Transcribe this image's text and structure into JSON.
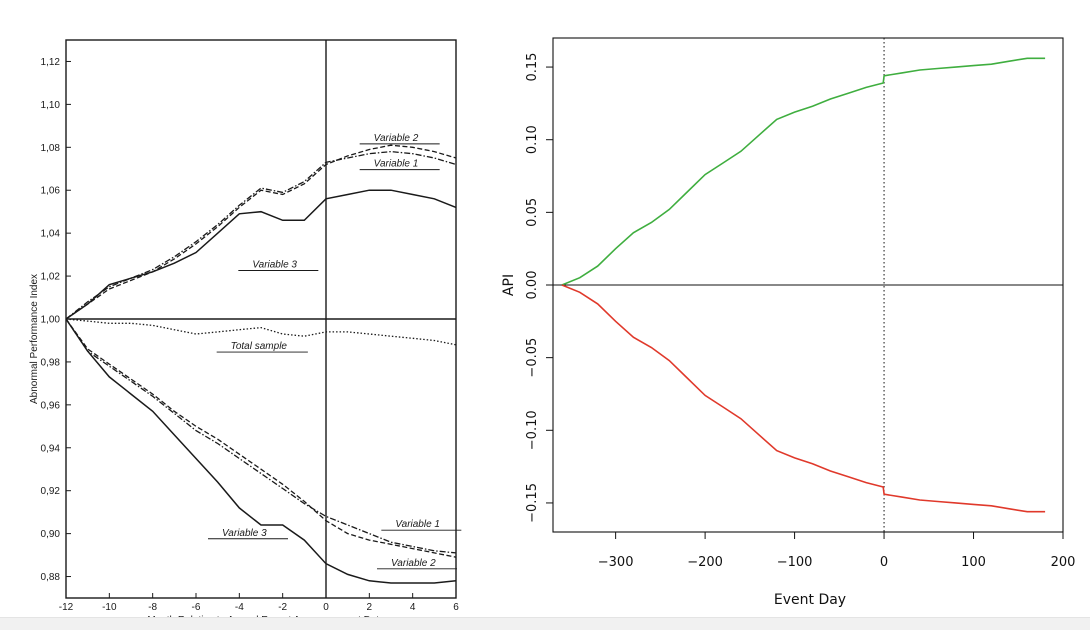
{
  "chart_data": [
    {
      "type": "line",
      "xlabel": "Month Relative to Annual Report Announcement Date",
      "ylabel": "Abnormal Performance Index",
      "xlim": [
        -12,
        6
      ],
      "ylim": [
        0.87,
        1.13
      ],
      "x_ticks": [
        "-12",
        "-10",
        "-8",
        "-6",
        "-4",
        "-2",
        "0",
        "2",
        "4",
        "6"
      ],
      "y_ticks": [
        "0,88",
        "0,90",
        "0,92",
        "0,94",
        "0,96",
        "0,98",
        "1,00",
        "1,02",
        "1,04",
        "1,06",
        "1,08",
        "1,10",
        "1,12"
      ],
      "vertical_line_x": 0,
      "reference_line_y": 1.0,
      "x": [
        -12,
        -11,
        -10,
        -9,
        -8,
        -7,
        -6,
        -5,
        -4,
        -3,
        -2,
        -1,
        0,
        1,
        2,
        3,
        4,
        5,
        6
      ],
      "series": [
        {
          "name": "Variable 2",
          "style": "dashed",
          "values": [
            1.0,
            1.007,
            1.014,
            1.018,
            1.022,
            1.028,
            1.035,
            1.043,
            1.052,
            1.06,
            1.058,
            1.063,
            1.072,
            1.076,
            1.079,
            1.081,
            1.08,
            1.078,
            1.075
          ]
        },
        {
          "name": "Variable 1",
          "style": "dashdot",
          "values": [
            1.0,
            1.008,
            1.015,
            1.019,
            1.023,
            1.029,
            1.036,
            1.044,
            1.053,
            1.061,
            1.059,
            1.064,
            1.073,
            1.075,
            1.077,
            1.078,
            1.077,
            1.075,
            1.072
          ]
        },
        {
          "name": "Variable 3",
          "style": "solid",
          "values": [
            1.0,
            1.007,
            1.016,
            1.019,
            1.022,
            1.026,
            1.031,
            1.04,
            1.049,
            1.05,
            1.046,
            1.046,
            1.056,
            1.058,
            1.06,
            1.06,
            1.058,
            1.056,
            1.052
          ]
        },
        {
          "name": "Total sample",
          "style": "dotted",
          "values": [
            1.0,
            0.999,
            0.998,
            0.998,
            0.997,
            0.995,
            0.993,
            0.994,
            0.995,
            0.996,
            0.993,
            0.992,
            0.994,
            0.994,
            0.993,
            0.992,
            0.991,
            0.99,
            0.988
          ]
        },
        {
          "name": "Variable 1",
          "style": "dashdot",
          "values": [
            1.0,
            0.985,
            0.978,
            0.971,
            0.964,
            0.956,
            0.948,
            0.942,
            0.935,
            0.928,
            0.921,
            0.914,
            0.908,
            0.904,
            0.9,
            0.896,
            0.894,
            0.892,
            0.891
          ]
        },
        {
          "name": "Variable 2",
          "style": "dashed",
          "values": [
            1.0,
            0.986,
            0.979,
            0.972,
            0.965,
            0.957,
            0.95,
            0.944,
            0.937,
            0.93,
            0.923,
            0.915,
            0.906,
            0.9,
            0.897,
            0.895,
            0.893,
            0.891,
            0.889
          ]
        },
        {
          "name": "Variable 3",
          "style": "solid",
          "values": [
            1.0,
            0.985,
            0.973,
            0.965,
            0.957,
            0.946,
            0.935,
            0.924,
            0.912,
            0.904,
            0.904,
            0.897,
            0.886,
            0.881,
            0.878,
            0.877,
            0.877,
            0.877,
            0.878
          ]
        }
      ],
      "labels": [
        {
          "text": "Variable 2",
          "x": 2.2,
          "y": 1.083
        },
        {
          "text": "Variable 1",
          "x": 2.2,
          "y": 1.071
        },
        {
          "text": "Variable 3",
          "x": -3.4,
          "y": 1.024
        },
        {
          "text": "Total sample",
          "x": -4.4,
          "y": 0.986
        },
        {
          "text": "Variable 1",
          "x": 3.2,
          "y": 0.903
        },
        {
          "text": "Variable 3",
          "x": -4.8,
          "y": 0.899
        },
        {
          "text": "Variable 2",
          "x": 3.0,
          "y": 0.885
        }
      ]
    },
    {
      "type": "line",
      "xlabel": "Event Day",
      "ylabel": "API",
      "xlim": [
        -370,
        200
      ],
      "ylim": [
        -0.17,
        0.17
      ],
      "x_ticks": [
        "−300",
        "−200",
        "−100",
        "0",
        "100",
        "200"
      ],
      "y_ticks": [
        "−0.15",
        "−0.10",
        "−0.05",
        "0.00",
        "0.05",
        "0.10",
        "0.15"
      ],
      "vertical_dotted_x": 0,
      "reference_line_y": 0,
      "x": [
        -360,
        -340,
        -320,
        -300,
        -280,
        -260,
        -240,
        -220,
        -200,
        -180,
        -160,
        -140,
        -120,
        -100,
        -80,
        -60,
        -40,
        -20,
        -1,
        0,
        20,
        40,
        60,
        80,
        100,
        120,
        140,
        160,
        180
      ],
      "series": [
        {
          "color": "#3fae3f",
          "values": [
            0.0,
            0.005,
            0.013,
            0.025,
            0.036,
            0.043,
            0.052,
            0.064,
            0.076,
            0.084,
            0.092,
            0.103,
            0.114,
            0.119,
            0.123,
            0.128,
            0.132,
            0.136,
            0.139,
            0.144,
            0.146,
            0.148,
            0.149,
            0.15,
            0.151,
            0.152,
            0.154,
            0.156,
            0.156
          ]
        },
        {
          "color": "#e0392b",
          "values": [
            0.0,
            -0.005,
            -0.013,
            -0.025,
            -0.036,
            -0.043,
            -0.052,
            -0.064,
            -0.076,
            -0.084,
            -0.092,
            -0.103,
            -0.114,
            -0.119,
            -0.123,
            -0.128,
            -0.132,
            -0.136,
            -0.139,
            -0.144,
            -0.146,
            -0.148,
            -0.149,
            -0.15,
            -0.151,
            -0.152,
            -0.154,
            -0.156,
            -0.156
          ]
        }
      ]
    }
  ]
}
